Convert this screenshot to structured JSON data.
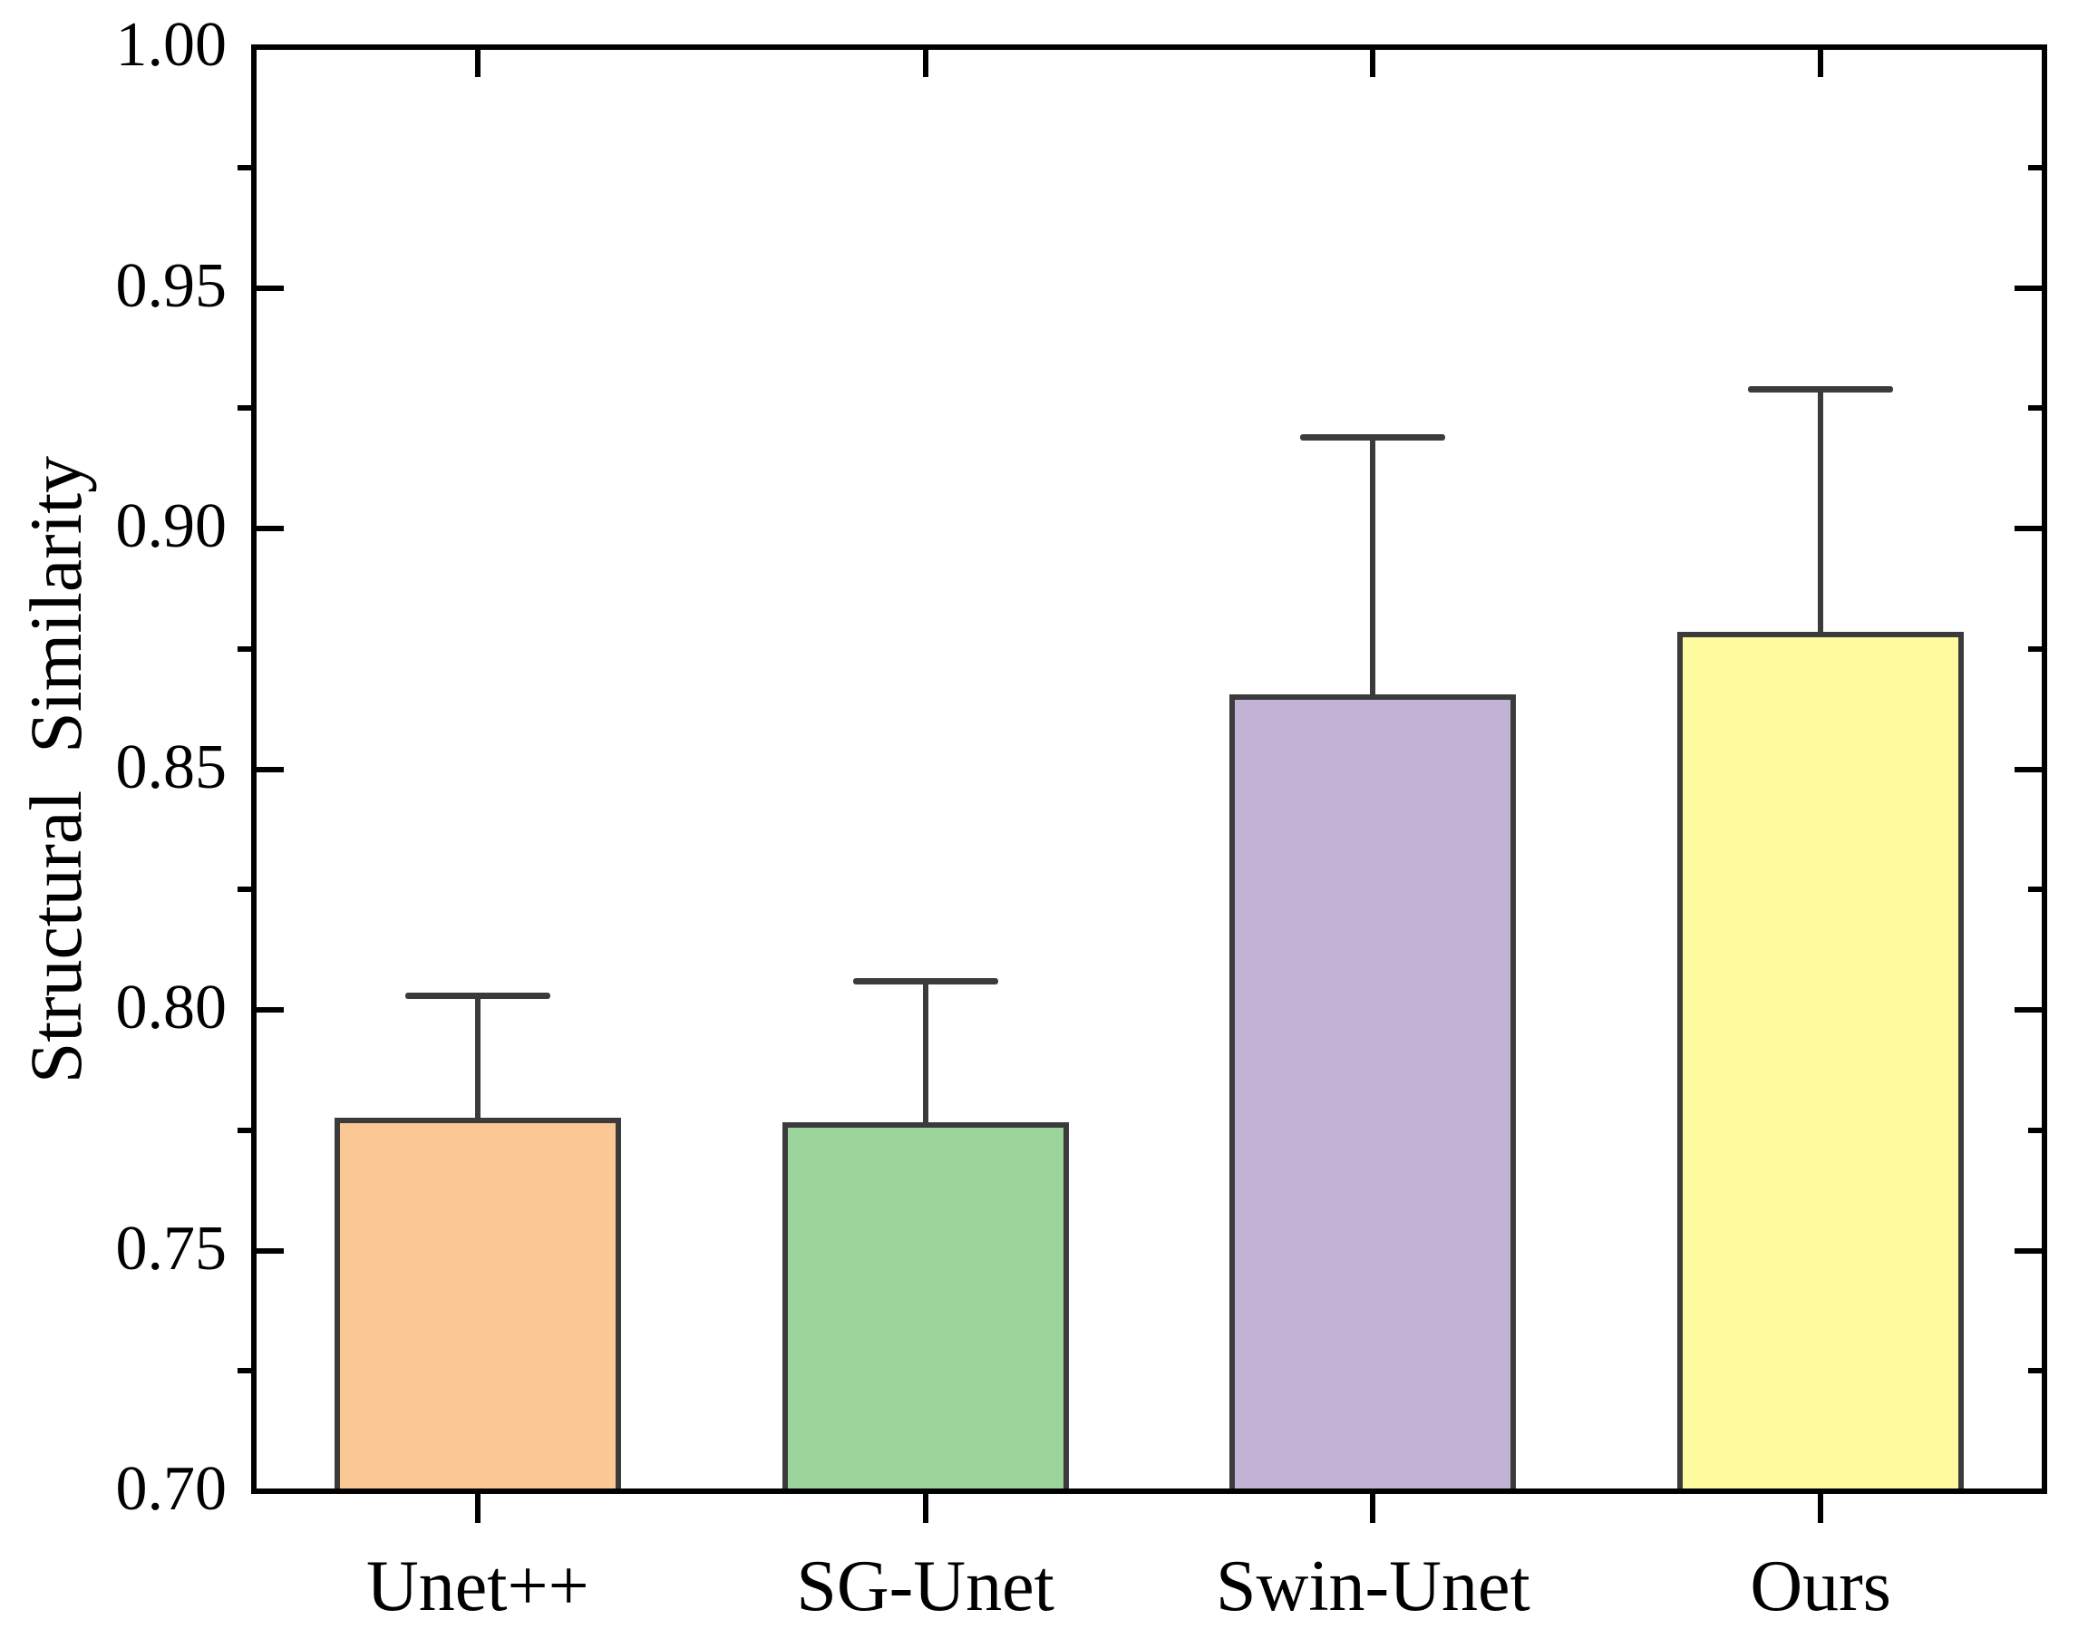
{
  "chart_data": {
    "type": "bar",
    "title": "",
    "ylabel": "Structural  Similarity",
    "xlabel": "",
    "categories": [
      "Unet++",
      "SG-Unet",
      "Swin-Unet",
      "Ours"
    ],
    "series": [
      {
        "name": "Structural Similarity",
        "values": [
          0.777,
          0.776,
          0.865,
          0.878
        ],
        "errors_plus": [
          0.026,
          0.03,
          0.054,
          0.051
        ],
        "error_cap_tops": [
          0.803,
          0.806,
          0.919,
          0.929
        ]
      }
    ],
    "bar_colors": [
      "#FBC795",
      "#9BD59C",
      "#C1B2D6",
      "#FDFB9E"
    ],
    "bar_edge_color": "#3B3B3B",
    "error_bar_color": "#3B3B3B",
    "axis_color": "#000000",
    "text_color": "#000000",
    "ylim": [
      0.7,
      1.0
    ],
    "y_ticks_major": [
      0.7,
      0.75,
      0.8,
      0.85,
      0.9,
      0.95,
      1.0
    ],
    "y_tick_labels": [
      "0.70",
      "0.75",
      "0.80",
      "0.85",
      "0.90",
      "0.95",
      "1.00"
    ],
    "y_ticks_minor": [
      0.725,
      0.775,
      0.825,
      0.875,
      0.925,
      0.975
    ],
    "grid": false,
    "legend": false
  }
}
